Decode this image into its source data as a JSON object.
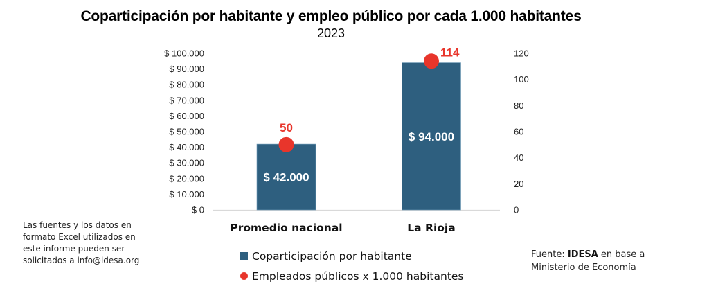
{
  "chart_data": {
    "type": "bar",
    "title": "Coparticipación por habitante y empleo público por cada 1.000 habitantes",
    "subtitle": "2023",
    "categories": [
      "Promedio nacional",
      "La Rioja"
    ],
    "series": [
      {
        "name": "Coparticipación por habitante",
        "type": "bar",
        "axis": "left",
        "values": [
          42000,
          94000
        ],
        "labels": [
          "$ 42.000",
          "$ 94.000"
        ],
        "color": "#2e5f7f"
      },
      {
        "name": "Empleados públicos x 1.000 habitantes",
        "type": "scatter",
        "axis": "right",
        "values": [
          50,
          114
        ],
        "labels": [
          "50",
          "114"
        ],
        "color": "#e8352b"
      }
    ],
    "y_left": {
      "range": [
        0,
        100000
      ],
      "ticks": [
        0,
        10000,
        20000,
        30000,
        40000,
        50000,
        60000,
        70000,
        80000,
        90000,
        100000
      ],
      "tick_labels": [
        "$ 0",
        "$ 10.000",
        "$ 20.000",
        "$ 30.000",
        "$ 40.000",
        "$ 50.000",
        "$ 60.000",
        "$ 70.000",
        "$ 80.000",
        "$ 90.000",
        "$ 100.000"
      ]
    },
    "y_right": {
      "range": [
        0,
        120
      ],
      "ticks": [
        0,
        20,
        40,
        60,
        80,
        100,
        120
      ],
      "tick_labels": [
        "0",
        "20",
        "40",
        "60",
        "80",
        "100",
        "120"
      ]
    },
    "xlabel": "",
    "ylabel": "",
    "grid": false,
    "legend": {
      "position": "bottom"
    }
  },
  "note": {
    "lines": [
      "Las fuentes y los datos en",
      "formato Excel utilizados en",
      "este informe pueden ser",
      "solicitados a info@idesa.org"
    ]
  },
  "source": {
    "prefix": "Fuente: ",
    "org": "IDESA",
    "suffix": " en base a",
    "line2": "Ministerio de Economía"
  },
  "colors": {
    "bar": "#2e5f7f",
    "dot": "#e8352b",
    "baseline": "#d9d9d9"
  }
}
